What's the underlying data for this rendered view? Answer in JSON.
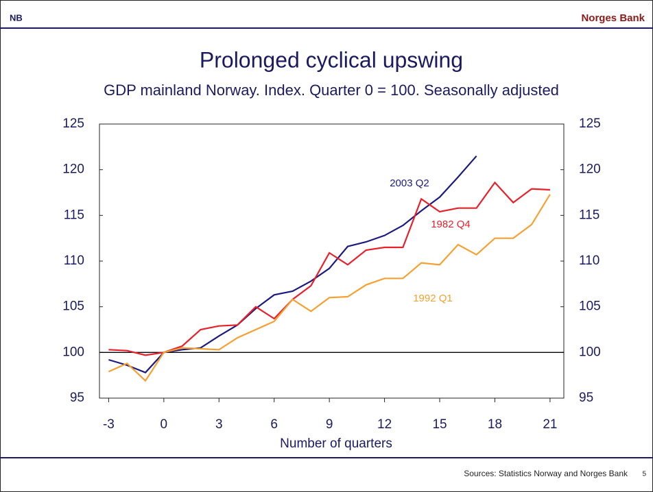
{
  "header": {
    "logo": "NB",
    "bank": "Norges Bank"
  },
  "chart_data": {
    "type": "line",
    "title": "Prolonged cyclical upswing",
    "subtitle": "GDP mainland Norway. Index. Quarter 0 = 100. Seasonally adjusted",
    "x_label": "Number of quarters",
    "x": [
      -3,
      -2,
      -1,
      0,
      1,
      2,
      3,
      4,
      5,
      6,
      7,
      8,
      9,
      10,
      11,
      12,
      13,
      14,
      15,
      16,
      17,
      18,
      19,
      20,
      21
    ],
    "series": [
      {
        "name": "2003 Q2",
        "color": "#1a1a80",
        "values": [
          99.2,
          98.6,
          97.8,
          100,
          100.3,
          100.5,
          101.8,
          103.0,
          104.8,
          106.3,
          106.7,
          107.8,
          109.2,
          111.6,
          112.1,
          112.8,
          113.9,
          115.5,
          117.0,
          119.2,
          121.5,
          null,
          null,
          null,
          null
        ]
      },
      {
        "name": "1982 Q4",
        "color": "#e8202a",
        "values": [
          100.3,
          100.2,
          99.7,
          100,
          100.7,
          102.5,
          102.9,
          103.0,
          105.0,
          103.7,
          105.8,
          107.3,
          110.9,
          109.6,
          111.2,
          111.5,
          111.5,
          116.8,
          115.4,
          115.8,
          115.8,
          118.6,
          116.4,
          117.9,
          117.8
        ]
      },
      {
        "name": "1992 Q1",
        "color": "#f5a030",
        "values": [
          97.9,
          98.8,
          96.9,
          100,
          100.5,
          100.4,
          100.3,
          101.6,
          102.5,
          103.4,
          105.8,
          104.5,
          106.0,
          106.1,
          107.4,
          108.1,
          108.1,
          109.8,
          109.6,
          111.8,
          110.7,
          112.5,
          112.5,
          114.0,
          117.3
        ]
      }
    ],
    "xlim": [
      -3.5,
      21.75
    ],
    "xticks": [
      -3,
      0,
      3,
      6,
      9,
      12,
      15,
      18,
      21
    ],
    "ylim": [
      95,
      125
    ],
    "yticks": [
      95,
      100,
      105,
      110,
      115,
      120,
      125
    ],
    "y2lim": [
      95,
      125
    ],
    "y2ticks": [
      95,
      100,
      105,
      110,
      115,
      120,
      125
    ],
    "reference_line": 100,
    "source": "Sources: Statistics Norway and Norges Bank",
    "page": "5"
  }
}
